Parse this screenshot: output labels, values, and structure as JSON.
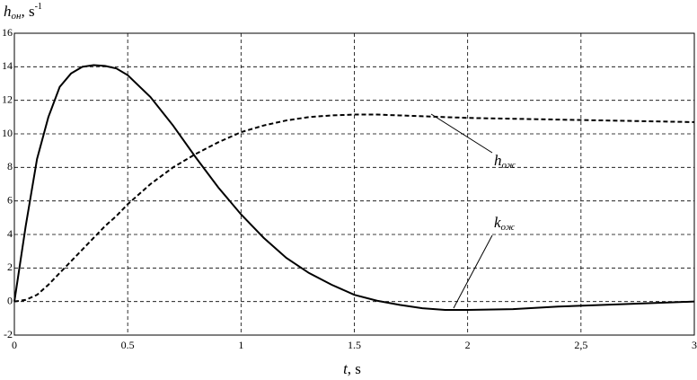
{
  "chart_data": {
    "type": "line",
    "y_label": {
      "main": "h",
      "sub": "он",
      "unit": ", s",
      "sup": "-1"
    },
    "x_label": {
      "main": "t",
      "unit": ", s"
    },
    "x": [
      0,
      0.05,
      0.1,
      0.15,
      0.2,
      0.25,
      0.3,
      0.35,
      0.4,
      0.45,
      0.5,
      0.6,
      0.7,
      0.8,
      0.9,
      1.0,
      1.1,
      1.2,
      1.3,
      1.4,
      1.5,
      1.6,
      1.7,
      1.8,
      1.9,
      2.0,
      2.2,
      2.4,
      2.6,
      2.8,
      3.0
    ],
    "series": [
      {
        "name": "k",
        "name_sub": "ож",
        "color": "#000000",
        "dash": false,
        "values": [
          0,
          4.5,
          8.5,
          11,
          12.8,
          13.6,
          14,
          14.1,
          14.05,
          13.9,
          13.5,
          12.2,
          10.5,
          8.6,
          6.8,
          5.2,
          3.8,
          2.6,
          1.7,
          1.0,
          0.4,
          0.05,
          -0.2,
          -0.4,
          -0.5,
          -0.5,
          -0.45,
          -0.3,
          -0.2,
          -0.1,
          0
        ]
      },
      {
        "name": "h",
        "name_sub": "ож",
        "color": "#000000",
        "dash": true,
        "values": [
          0,
          0.1,
          0.4,
          1.0,
          1.7,
          2.4,
          3.1,
          3.8,
          4.5,
          5.1,
          5.8,
          7.0,
          8.0,
          8.8,
          9.5,
          10.1,
          10.5,
          10.8,
          11.0,
          11.1,
          11.15,
          11.15,
          11.1,
          11.05,
          11.0,
          10.95,
          10.9,
          10.85,
          10.8,
          10.75,
          10.7
        ]
      }
    ],
    "xlim": [
      0,
      3
    ],
    "ylim": [
      -2,
      16
    ],
    "xticks": [
      0,
      0.5,
      1,
      1.5,
      2,
      {
        "value": 2.5,
        "label": "2,5"
      },
      3
    ],
    "yticks": [
      -2,
      0,
      2,
      4,
      6,
      8,
      10,
      12,
      14,
      16
    ],
    "grid": true
  }
}
